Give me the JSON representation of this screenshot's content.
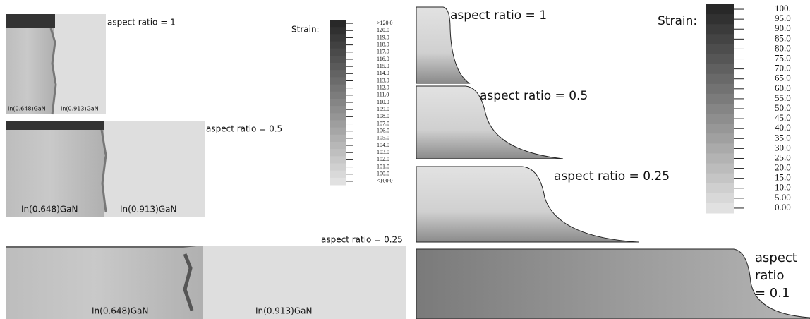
{
  "left_figure": {
    "panels": [
      {
        "label": "aspect ratio = 1",
        "materials": [
          "In(0.648)GaN",
          "In(0.913)GaN"
        ]
      },
      {
        "label": "aspect ratio = 0.5",
        "materials": [
          "In(0.648)GaN",
          "In(0.913)GaN"
        ]
      },
      {
        "label": "aspect ratio = 0.25",
        "materials": [
          "In(0.648)GaN",
          "In(0.913)GaN"
        ]
      }
    ],
    "legend": {
      "title": "Strain:",
      "levels": [
        ">120.0",
        "120.0",
        "119.0",
        "118.0",
        "117.0",
        "116.0",
        "115.0",
        "114.0",
        "113.0",
        "112.0",
        "111.0",
        "110.0",
        "109.0",
        "108.0",
        "107.0",
        "106.0",
        "105.0",
        "104.0",
        "103.0",
        "102.0",
        "101.0",
        "100.0",
        "<100.0"
      ]
    }
  },
  "right_figure": {
    "panels": [
      {
        "label": "aspect ratio = 1"
      },
      {
        "label": "aspect ratio = 0.5"
      },
      {
        "label": "aspect ratio = 0.25"
      },
      {
        "label_lines": [
          "aspect",
          "ratio",
          "= 0.1"
        ]
      }
    ],
    "legend": {
      "title": "Strain:",
      "levels": [
        "100.",
        "95.0",
        "90.0",
        "85.0",
        "80.0",
        "75.0",
        "70.0",
        "65.0",
        "60.0",
        "55.0",
        "50.0",
        "45.0",
        "40.0",
        "35.0",
        "30.0",
        "25.0",
        "20.0",
        "15.0",
        "10.0",
        "5.00",
        "0.00"
      ]
    }
  }
}
